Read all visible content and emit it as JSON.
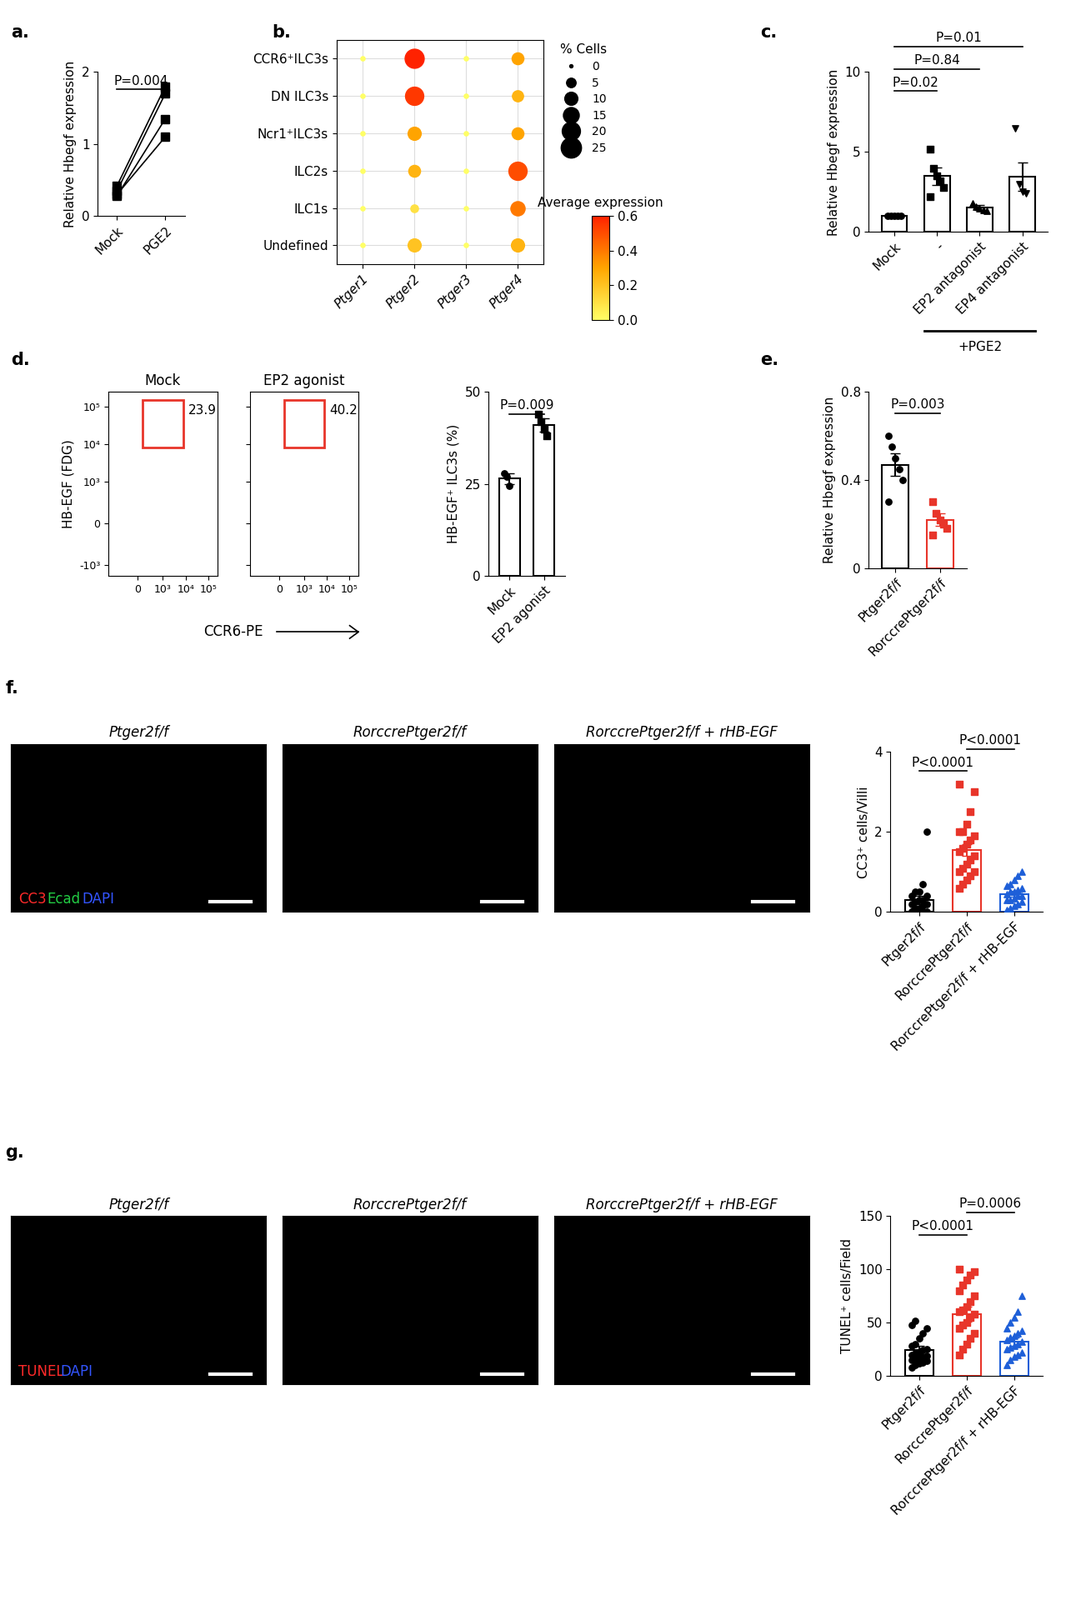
{
  "chart_data": [
    {
      "panel": "a.",
      "type": "paired_line",
      "categories": [
        "Mock",
        "PGE2"
      ],
      "pairs": [
        [
          0.42,
          1.8
        ],
        [
          0.35,
          1.7
        ],
        [
          0.28,
          1.35
        ],
        [
          0.3,
          1.1
        ]
      ],
      "color": "#000000",
      "marker": "square",
      "ylabel": "Relative Hbegf expression",
      "ylim": [
        0,
        2
      ],
      "yticks": [
        0,
        1,
        2
      ],
      "comparisons": [
        {
          "from": "Mock",
          "to": "PGE2",
          "label": "P=0.004"
        }
      ]
    },
    {
      "panel": "b.",
      "type": "dot_plot",
      "categories": [
        "Ptger1",
        "Ptger2",
        "Ptger3",
        "Ptger4"
      ],
      "rows": [
        "CCR6⁺ILC3s",
        "DN ILC3s",
        "Ncr1⁺ILC3s",
        "ILC2s",
        "ILC1s",
        "Undefined"
      ],
      "percent_cells": [
        [
          0.5,
          22,
          0.5,
          8
        ],
        [
          0.5,
          20,
          0.5,
          7
        ],
        [
          0.5,
          10,
          0.5,
          8
        ],
        [
          0.5,
          8,
          0.5,
          20
        ],
        [
          0.5,
          3,
          0.5,
          12
        ],
        [
          0.5,
          10,
          0.5,
          10
        ]
      ],
      "average_expression": [
        [
          0.0,
          0.6,
          0.0,
          0.3
        ],
        [
          0.0,
          0.55,
          0.0,
          0.25
        ],
        [
          0.0,
          0.3,
          0.0,
          0.3
        ],
        [
          0.0,
          0.25,
          0.0,
          0.5
        ],
        [
          0.0,
          0.1,
          0.0,
          0.4
        ],
        [
          0.0,
          0.2,
          0.0,
          0.25
        ]
      ],
      "size_legend_title": "% Cells",
      "size_legend": [
        0,
        5,
        10,
        15,
        20,
        25
      ],
      "colorbar_title": "Average expression",
      "colorbar_range": [
        0,
        0.6
      ],
      "colorbar_ticks": [
        {
          "value": 0,
          "label": "0.0"
        },
        {
          "value": 0.2,
          "label": "0.2"
        },
        {
          "value": 0.4,
          "label": "0.4"
        },
        {
          "value": 0.6,
          "label": "0.6"
        }
      ],
      "grid": true
    },
    {
      "panel": "c.",
      "type": "bar_scatter",
      "categories": [
        "Mock",
        "-",
        "EP2 antagonist",
        "EP4 antagonist"
      ],
      "values": [
        1.0,
        3.5,
        1.55,
        3.45
      ],
      "errors": [
        0.02,
        0.55,
        0.15,
        0.9
      ],
      "points": [
        [
          1.0,
          1.0,
          1.0,
          1.0,
          1.0
        ],
        [
          5.2,
          4.0,
          3.5,
          3.2,
          2.8,
          2.2
        ],
        [
          1.8,
          1.6,
          1.5,
          1.4,
          1.3
        ],
        [
          6.5,
          3.0,
          2.5,
          2.4
        ]
      ],
      "colors": [
        "#000000",
        "#000000",
        "#000000",
        "#000000"
      ],
      "markers": [
        "circle",
        "square",
        "triangle_up",
        "triangle_down"
      ],
      "ylabel": "Relative Hbegf expression",
      "ylim": [
        0,
        10
      ],
      "yticks": [
        0,
        5,
        10
      ],
      "group": {
        "label": "+PGE2",
        "categories": [
          "-",
          "EP2 antagonist",
          "EP4 antagonist"
        ]
      },
      "comparisons": [
        {
          "from": "Mock",
          "to": "-",
          "label": "P=0.02"
        },
        {
          "from": "Mock",
          "to": "EP2 antagonist",
          "label": "P=0.84"
        },
        {
          "from": "Mock",
          "to": "EP4 antagonist",
          "label": "P=0.01"
        }
      ]
    },
    {
      "panel": "d.",
      "type": "flow_gate",
      "title": "Mock",
      "gate_percent": 23.9,
      "gate": {
        "x": [
          200,
          8000
        ],
        "y": [
          8000,
          150000
        ]
      },
      "ylabel": "HB-EGF (FDG)",
      "xlabel": "CCR6-PE",
      "log": "symlog",
      "xlim": [
        -1500,
        250000
      ],
      "ylim": [
        -2000,
        250000
      ],
      "xticks": [
        {
          "value": 0,
          "label": "0"
        },
        {
          "value": 1000,
          "label": "10³"
        },
        {
          "value": 10000,
          "label": "10⁴"
        },
        {
          "value": 100000,
          "label": "10⁵"
        }
      ],
      "yticks": [
        {
          "value": -1000,
          "label": "-10³"
        },
        {
          "value": 0,
          "label": "0"
        },
        {
          "value": 1000,
          "label": "10³"
        },
        {
          "value": 10000,
          "label": "10⁴"
        },
        {
          "value": 100000,
          "label": "10⁵"
        }
      ],
      "color": "#e8352a"
    },
    {
      "type": "flow_gate",
      "title": "EP2 agonist",
      "gate_percent": 40.2,
      "gate": {
        "x": [
          200,
          8000
        ],
        "y": [
          8000,
          150000
        ]
      },
      "log": "symlog",
      "xlim": [
        -1500,
        250000
      ],
      "ylim": [
        -2000,
        250000
      ],
      "xticks": [
        {
          "value": 0,
          "label": "0"
        },
        {
          "value": 1000,
          "label": "10³"
        },
        {
          "value": 10000,
          "label": "10⁴"
        },
        {
          "value": 100000,
          "label": "10⁵"
        }
      ],
      "yticks": [
        {
          "value": -1000,
          "label": "-10³"
        },
        {
          "value": 0,
          "label": "0"
        },
        {
          "value": 1000,
          "label": "10³"
        },
        {
          "value": 10000,
          "label": "10⁴"
        },
        {
          "value": 100000,
          "label": "10⁵"
        }
      ],
      "tick_labels": "x",
      "color": "#e8352a"
    },
    {
      "type": "bar_scatter",
      "categories": [
        "Mock",
        "EP2 agonist"
      ],
      "values": [
        26.5,
        41.0
      ],
      "errors": [
        1.5,
        1.8
      ],
      "points": [
        [
          28,
          27,
          24.5
        ],
        [
          44,
          42,
          40,
          38
        ]
      ],
      "colors": [
        "#000000",
        "#000000"
      ],
      "markers": [
        "circle",
        "square"
      ],
      "ylabel": "HB-EGF⁺ ILC3s (%)",
      "ylim": [
        0,
        50
      ],
      "yticks": [
        0,
        25,
        50
      ],
      "comparisons": [
        {
          "from": "Mock",
          "to": "EP2 agonist",
          "label": "P=0.009"
        }
      ]
    },
    {
      "panel": "e.",
      "type": "bar_scatter",
      "categories": [
        "Ptger2f/f",
        "RorccrePtger2f/f"
      ],
      "values": [
        0.47,
        0.22
      ],
      "errors": [
        0.05,
        0.03
      ],
      "points": [
        [
          0.6,
          0.55,
          0.5,
          0.45,
          0.4,
          0.3
        ],
        [
          0.3,
          0.25,
          0.22,
          0.2,
          0.18,
          0.15
        ]
      ],
      "colors": [
        "#000000",
        "#e8352a"
      ],
      "markers": [
        "circle",
        "square"
      ],
      "ylabel": "Relative Hbegf expression",
      "ylim": [
        0,
        0.8
      ],
      "yticks": [
        0,
        0.4,
        0.8
      ],
      "comparisons": [
        {
          "from": "Ptger2f/f",
          "to": "RorccrePtger2f/f",
          "label": "P=0.003"
        }
      ]
    },
    {
      "panel": "f.",
      "type": "image_row",
      "titles": [
        "Ptger2f/f",
        "RorccrePtger2f/f",
        "RorccrePtger2f/f + rHB-EGF"
      ],
      "channels": [
        {
          "text": "CC3",
          "color": "#ff2a2a"
        },
        {
          "text": "Ecad",
          "color": "#22cc44"
        },
        {
          "text": "DAPI",
          "color": "#3355ff"
        }
      ]
    },
    {
      "type": "bar_scatter",
      "categories": [
        "Ptger2f/f",
        "RorccrePtger2f/f",
        "RorccrePtger2f/f + rHB-EGF"
      ],
      "values": [
        0.3,
        1.55,
        0.45
      ],
      "errors": [
        0.1,
        0.15,
        0.07
      ],
      "points": [
        [
          0,
          0,
          0,
          0,
          0,
          0,
          0.1,
          0.1,
          0.15,
          0.2,
          0.2,
          0.25,
          0.3,
          0.3,
          0.4,
          0.4,
          0.5,
          0.5,
          0.7,
          2.0
        ],
        [
          0.6,
          0.7,
          0.8,
          0.9,
          1.0,
          1.0,
          1.1,
          1.2,
          1.3,
          1.4,
          1.5,
          1.6,
          1.7,
          1.8,
          1.9,
          2.0,
          2.0,
          2.2,
          2.5,
          3.0,
          3.2
        ],
        [
          0.05,
          0.1,
          0.15,
          0.2,
          0.25,
          0.3,
          0.3,
          0.35,
          0.4,
          0.4,
          0.45,
          0.5,
          0.5,
          0.55,
          0.6,
          0.65,
          0.7,
          0.8,
          0.9,
          1.0
        ]
      ],
      "colors": [
        "#000000",
        "#e8352a",
        "#1e5fd8"
      ],
      "markers": [
        "circle",
        "square",
        "triangle_up"
      ],
      "ylabel": "CC3⁺ cells/Villi",
      "ylim": [
        0,
        4
      ],
      "yticks": [
        0,
        2,
        4
      ],
      "comparisons": [
        {
          "from": "Ptger2f/f",
          "to": "RorccrePtger2f/f",
          "label": "P<0.0001"
        },
        {
          "from": "RorccrePtger2f/f",
          "to": "RorccrePtger2f/f + rHB-EGF",
          "label": "P<0.0001"
        }
      ]
    },
    {
      "panel": "g.",
      "type": "image_row",
      "titles": [
        "Ptger2f/f",
        "RorccrePtger2f/f",
        "RorccrePtger2f/f + rHB-EGF"
      ],
      "channels": [
        {
          "text": "TUNEL",
          "color": "#ff2a2a"
        },
        {
          "text": "DAPI",
          "color": "#3355ff"
        }
      ]
    },
    {
      "type": "bar_scatter",
      "categories": [
        "Ptger2f/f",
        "RorccrePtger2f/f",
        "RorccrePtger2f/f + rHB-EGF"
      ],
      "values": [
        24,
        58,
        32
      ],
      "errors": [
        4,
        7,
        4
      ],
      "points": [
        [
          8,
          10,
          12,
          13,
          14,
          15,
          16,
          17,
          18,
          19,
          20,
          21,
          22,
          24,
          25,
          28,
          30,
          35,
          40,
          45,
          48,
          52
        ],
        [
          20,
          25,
          30,
          35,
          40,
          45,
          48,
          50,
          55,
          58,
          60,
          62,
          65,
          70,
          75,
          80,
          85,
          90,
          95,
          98,
          100
        ],
        [
          10,
          15,
          18,
          20,
          22,
          25,
          27,
          28,
          30,
          32,
          34,
          36,
          38,
          40,
          42,
          45,
          50,
          55,
          60,
          75
        ]
      ],
      "colors": [
        "#000000",
        "#e8352a",
        "#1e5fd8"
      ],
      "markers": [
        "circle",
        "square",
        "triangle_up"
      ],
      "ylabel": "TUNEL⁺ cells/Field",
      "ylim": [
        0,
        150
      ],
      "yticks": [
        0,
        50,
        100,
        150
      ],
      "comparisons": [
        {
          "from": "Ptger2f/f",
          "to": "RorccrePtger2f/f",
          "label": "P<0.0001"
        },
        {
          "from": "RorccrePtger2f/f",
          "to": "RorccrePtger2f/f + rHB-EGF",
          "label": "P=0.0006"
        }
      ]
    }
  ]
}
